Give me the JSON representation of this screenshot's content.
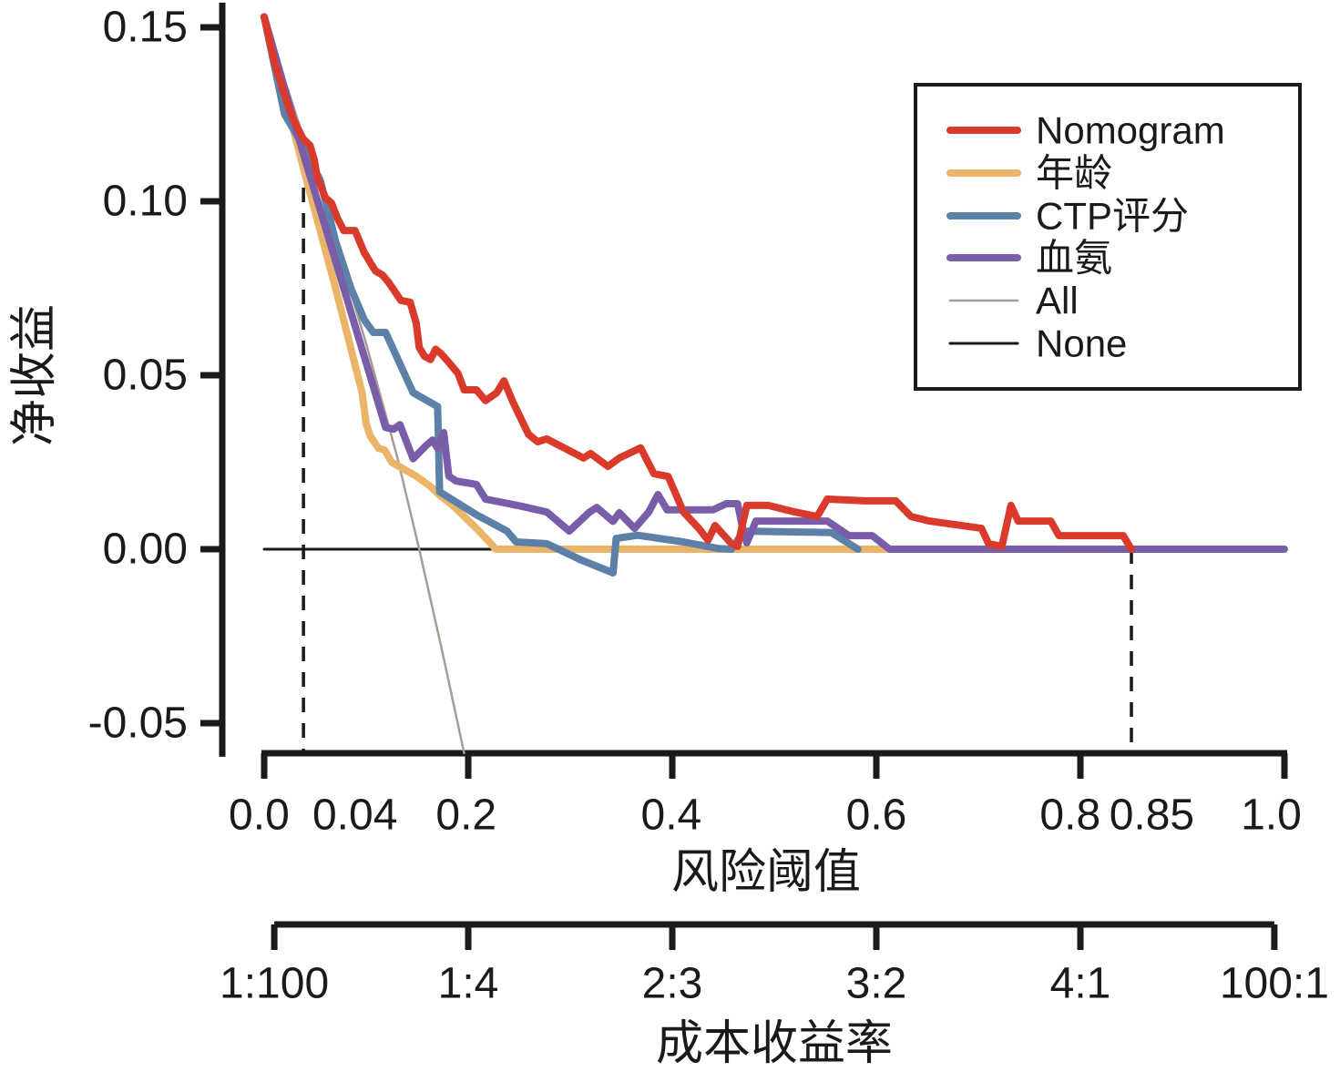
{
  "figure": {
    "background": "#ffffff",
    "text_color": "#1a1a1a"
  },
  "chart_data": {
    "type": "line",
    "title": "",
    "xlabel": "风险阈值",
    "ylabel": "净收益",
    "x2label": "成本收益率",
    "xlim": [
      0,
      1
    ],
    "ylim": [
      -0.0586,
      0.155
    ],
    "grid": false,
    "legend_position": "upper-right",
    "y_ticks": [
      {
        "value": 0.15,
        "label": "0.15"
      },
      {
        "value": 0.1,
        "label": "0.10"
      },
      {
        "value": 0.05,
        "label": "0.05"
      },
      {
        "value": 0.0,
        "label": "0.00"
      },
      {
        "value": -0.05,
        "label": "-0.05"
      }
    ],
    "x_tick_marks": [
      0.0,
      0.2,
      0.4,
      0.6,
      0.8,
      1.0
    ],
    "x_tick_labels": [
      {
        "label": "0.0",
        "at": -0.005
      },
      {
        "label": "0.04",
        "at": 0.089
      },
      {
        "label": "0.2",
        "at": 0.198
      },
      {
        "label": "0.4",
        "at": 0.399
      },
      {
        "label": "0.6",
        "at": 0.6
      },
      {
        "label": "0.8",
        "at": 0.79
      },
      {
        "label": "0.85",
        "at": 0.87
      },
      {
        "label": "1.0",
        "at": 0.987
      }
    ],
    "x2_ticks": [
      {
        "at": 0.0099,
        "label": "1:100"
      },
      {
        "at": 0.2,
        "label": "1:4"
      },
      {
        "at": 0.4,
        "label": "2:3"
      },
      {
        "at": 0.6,
        "label": "3:2"
      },
      {
        "at": 0.8,
        "label": "4:1"
      },
      {
        "at": 0.9901,
        "label": "100:1"
      }
    ],
    "reference_lines": [
      {
        "name": "threshold-low",
        "x": 0.0385,
        "y_from": 0.1186,
        "style": "dashed"
      },
      {
        "name": "threshold-high",
        "x": 0.85,
        "y_from": 0.0,
        "style": "dashed"
      }
    ],
    "series": [
      {
        "name": "Nomogram",
        "color": "#D93A2B",
        "width": 8,
        "points": [
          [
            0.0,
            0.153
          ],
          [
            0.01,
            0.14
          ],
          [
            0.024,
            0.127
          ],
          [
            0.029,
            0.1233
          ],
          [
            0.038,
            0.118
          ],
          [
            0.045,
            0.116
          ],
          [
            0.049,
            0.112
          ],
          [
            0.052,
            0.107
          ],
          [
            0.06,
            0.101
          ],
          [
            0.066,
            0.0995
          ],
          [
            0.072,
            0.095
          ],
          [
            0.078,
            0.0916
          ],
          [
            0.089,
            0.0916
          ],
          [
            0.098,
            0.0853
          ],
          [
            0.109,
            0.08
          ],
          [
            0.116,
            0.0788
          ],
          [
            0.122,
            0.0767
          ],
          [
            0.134,
            0.0715
          ],
          [
            0.143,
            0.071
          ],
          [
            0.149,
            0.065
          ],
          [
            0.152,
            0.058
          ],
          [
            0.157,
            0.0555
          ],
          [
            0.163,
            0.0545
          ],
          [
            0.168,
            0.0575
          ],
          [
            0.174,
            0.056
          ],
          [
            0.181,
            0.0537
          ],
          [
            0.19,
            0.0505
          ],
          [
            0.196,
            0.0458
          ],
          [
            0.208,
            0.0458
          ],
          [
            0.217,
            0.0427
          ],
          [
            0.228,
            0.045
          ],
          [
            0.235,
            0.0484
          ],
          [
            0.244,
            0.0422
          ],
          [
            0.259,
            0.033
          ],
          [
            0.268,
            0.0309
          ],
          [
            0.277,
            0.0317
          ],
          [
            0.313,
            0.0262
          ],
          [
            0.32,
            0.0275
          ],
          [
            0.337,
            0.0238
          ],
          [
            0.348,
            0.0262
          ],
          [
            0.363,
            0.0283
          ],
          [
            0.369,
            0.0291
          ],
          [
            0.382,
            0.0217
          ],
          [
            0.396,
            0.0209
          ],
          [
            0.411,
            0.0107
          ],
          [
            0.426,
            0.006
          ],
          [
            0.435,
            0.0026
          ],
          [
            0.442,
            0.0068
          ],
          [
            0.458,
            0.0016
          ],
          [
            0.464,
            0.0008
          ],
          [
            0.473,
            0.0126
          ],
          [
            0.494,
            0.0126
          ],
          [
            0.52,
            0.0107
          ],
          [
            0.542,
            0.0094
          ],
          [
            0.552,
            0.0144
          ],
          [
            0.589,
            0.0139
          ],
          [
            0.619,
            0.0139
          ],
          [
            0.634,
            0.0094
          ],
          [
            0.652,
            0.0081
          ],
          [
            0.703,
            0.006
          ],
          [
            0.71,
            0.0016
          ],
          [
            0.723,
            0.0008
          ],
          [
            0.732,
            0.0126
          ],
          [
            0.739,
            0.0081
          ],
          [
            0.771,
            0.0081
          ],
          [
            0.779,
            0.0039
          ],
          [
            0.842,
            0.0039
          ],
          [
            0.85,
            0.0
          ]
        ]
      },
      {
        "name": "年龄",
        "color": "#EBB569",
        "width": 8,
        "points": [
          [
            0.0,
            0.153
          ],
          [
            0.038,
            0.11
          ],
          [
            0.07,
            0.075
          ],
          [
            0.096,
            0.045
          ],
          [
            0.1,
            0.036
          ],
          [
            0.104,
            0.0325
          ],
          [
            0.112,
            0.029
          ],
          [
            0.118,
            0.0285
          ],
          [
            0.125,
            0.025
          ],
          [
            0.149,
            0.021
          ],
          [
            0.163,
            0.018
          ],
          [
            0.17,
            0.016
          ],
          [
            0.183,
            0.013
          ],
          [
            0.194,
            0.01
          ],
          [
            0.208,
            0.006
          ],
          [
            0.221,
            0.002
          ],
          [
            0.227,
            0.0
          ],
          [
            0.65,
            0.0
          ]
        ]
      },
      {
        "name": "CTP评分",
        "color": "#5C80A7",
        "width": 8,
        "points": [
          [
            0.0,
            0.153
          ],
          [
            0.02,
            0.125
          ],
          [
            0.038,
            0.116
          ],
          [
            0.055,
            0.106
          ],
          [
            0.07,
            0.0885
          ],
          [
            0.085,
            0.075
          ],
          [
            0.098,
            0.066
          ],
          [
            0.107,
            0.0623
          ],
          [
            0.119,
            0.0623
          ],
          [
            0.146,
            0.045
          ],
          [
            0.17,
            0.041
          ],
          [
            0.172,
            0.0165
          ],
          [
            0.179,
            0.0152
          ],
          [
            0.208,
            0.0099
          ],
          [
            0.238,
            0.0052
          ],
          [
            0.247,
            0.0021
          ],
          [
            0.277,
            0.0016
          ],
          [
            0.31,
            -0.003
          ],
          [
            0.342,
            -0.0068
          ],
          [
            0.345,
            0.0031
          ],
          [
            0.366,
            0.004
          ],
          [
            0.411,
            0.0021
          ],
          [
            0.445,
            0.0002
          ],
          [
            0.458,
            0.0
          ],
          [
            0.47,
            0.0052
          ],
          [
            0.556,
            0.0048
          ],
          [
            0.582,
            0.0
          ]
        ]
      },
      {
        "name": "血氨",
        "color": "#7A5DA8",
        "width": 8,
        "points": [
          [
            0.0,
            0.153
          ],
          [
            0.038,
            0.114
          ],
          [
            0.119,
            0.035
          ],
          [
            0.127,
            0.0345
          ],
          [
            0.133,
            0.0358
          ],
          [
            0.146,
            0.026
          ],
          [
            0.158,
            0.0296
          ],
          [
            0.165,
            0.0314
          ],
          [
            0.17,
            0.029
          ],
          [
            0.176,
            0.0335
          ],
          [
            0.181,
            0.021
          ],
          [
            0.188,
            0.0196
          ],
          [
            0.208,
            0.0186
          ],
          [
            0.217,
            0.0144
          ],
          [
            0.25,
            0.0125
          ],
          [
            0.277,
            0.0107
          ],
          [
            0.299,
            0.0052
          ],
          [
            0.319,
            0.0107
          ],
          [
            0.326,
            0.012
          ],
          [
            0.342,
            0.008
          ],
          [
            0.348,
            0.0105
          ],
          [
            0.363,
            0.006
          ],
          [
            0.377,
            0.0107
          ],
          [
            0.386,
            0.0157
          ],
          [
            0.395,
            0.0113
          ],
          [
            0.44,
            0.0113
          ],
          [
            0.453,
            0.0131
          ],
          [
            0.464,
            0.0131
          ],
          [
            0.469,
            0.006
          ],
          [
            0.473,
            0.0018
          ],
          [
            0.482,
            0.0081
          ],
          [
            0.552,
            0.0081
          ],
          [
            0.573,
            0.0039
          ],
          [
            0.596,
            0.0039
          ],
          [
            0.613,
            0.0
          ],
          [
            1.0,
            0.0
          ]
        ]
      },
      {
        "name": "All",
        "color": "#A59C94",
        "width": 2.5,
        "points": [
          [
            0.0,
            0.153
          ],
          [
            0.05,
            0.108
          ],
          [
            0.1,
            0.059
          ],
          [
            0.13,
            0.027
          ],
          [
            0.152,
            0.0
          ],
          [
            0.175,
            -0.03
          ],
          [
            0.196,
            -0.0586
          ]
        ]
      },
      {
        "name": "None",
        "color": "#1A1A1A",
        "width": 3,
        "points": [
          [
            0.0,
            0.0
          ],
          [
            1.0,
            0.0
          ]
        ]
      }
    ],
    "legend_entries": [
      "Nomogram",
      "年龄",
      "CTP评分",
      "血氨",
      "All",
      "None"
    ]
  }
}
